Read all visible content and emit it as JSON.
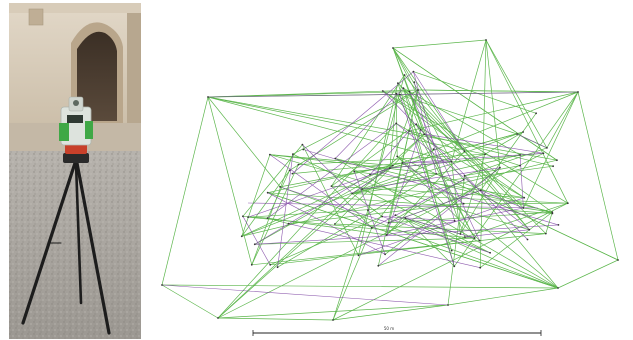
{
  "figure": {
    "photo_subject": "total-station-on-tripod-in-courtyard",
    "network_subject": "survey-traverse-network-plot",
    "scale_bar_label": "50 m"
  },
  "colors": {
    "observation_line": "#4caf3a",
    "secondary_line": "#7a3fa0",
    "station_point": "#333333",
    "instrument_body": "#dde3dd",
    "instrument_accent": "#3fa846",
    "tribrach": "#c8402a",
    "tripod": "#1d1d1d",
    "gravel": "#a7a4a0",
    "wall": "#cdbfab"
  }
}
